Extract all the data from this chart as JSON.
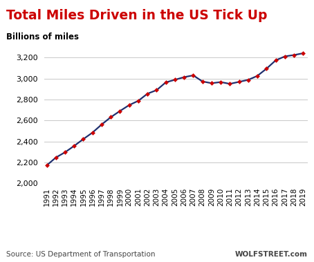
{
  "title": "Total Miles Driven in the US Tick Up",
  "ylabel": "Billions of miles",
  "source_left": "Source: US Department of Transportation",
  "source_right": "WOLFSTREET.com",
  "years": [
    1991,
    1992,
    1993,
    1994,
    1995,
    1996,
    1997,
    1998,
    1999,
    2000,
    2001,
    2002,
    2003,
    2004,
    2005,
    2006,
    2007,
    2008,
    2009,
    2010,
    2011,
    2012,
    2013,
    2014,
    2015,
    2016,
    2017,
    2018,
    2019
  ],
  "values": [
    2172,
    2247,
    2297,
    2358,
    2423,
    2485,
    2562,
    2632,
    2691,
    2747,
    2788,
    2856,
    2890,
    2964,
    2989,
    3014,
    3031,
    2973,
    2956,
    2967,
    2950,
    2969,
    2988,
    3026,
    3095,
    3174,
    3212,
    3225,
    3242
  ],
  "line_color": "#1f2f6e",
  "marker_color": "#cc0000",
  "background_color": "#ffffff",
  "title_color": "#cc0000",
  "ylim": [
    2000,
    3300
  ],
  "yticks": [
    2000,
    2200,
    2400,
    2600,
    2800,
    3000,
    3200
  ],
  "grid_color": "#c8c8c8",
  "title_fontsize": 13.5,
  "ylabel_fontsize": 8.5,
  "source_fontsize": 7.5,
  "tick_fontsize": 7.5,
  "ytick_fontsize": 8.0
}
